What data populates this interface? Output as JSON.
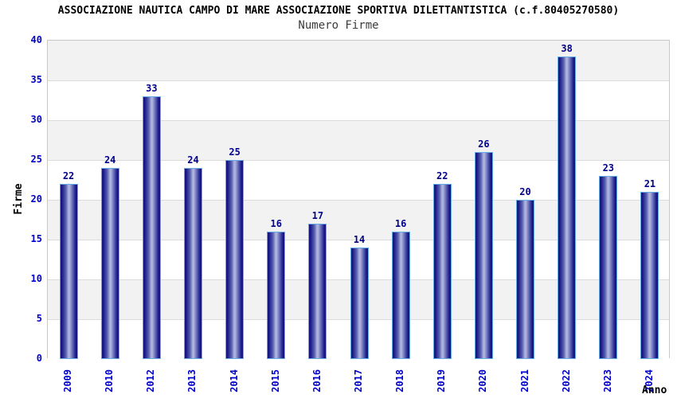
{
  "chart_data": {
    "type": "bar",
    "title": "ASSOCIAZIONE NAUTICA CAMPO DI MARE ASSOCIAZIONE SPORTIVA DILETTANTISTICA (c.f.80405270580)",
    "subtitle": "Numero Firme",
    "xlabel": "Anno",
    "ylabel": "Firme",
    "categories": [
      "2009",
      "2010",
      "2012",
      "2013",
      "2014",
      "2015",
      "2016",
      "2017",
      "2018",
      "2019",
      "2020",
      "2021",
      "2022",
      "2023",
      "2024"
    ],
    "values": [
      22,
      24,
      33,
      24,
      25,
      16,
      17,
      14,
      16,
      22,
      26,
      20,
      38,
      23,
      21
    ],
    "ylim": [
      0,
      40
    ],
    "ytick_step": 5,
    "yticks": [
      0,
      5,
      10,
      15,
      20,
      25,
      30,
      35,
      40
    ],
    "grid": true,
    "legend_position": "none",
    "colors": {
      "bar_dark": "#14147a",
      "bar_light": "#b4b9e0",
      "bar_outline": "#64aae4",
      "value_label": "#00008b",
      "tick_label": "#0000cc",
      "band_gray": "#f2f2f2",
      "gridline": "#dcdcdc",
      "plot_border": "#c8c8c8",
      "title": "#000000",
      "subtitle": "#3c3c3c",
      "background": "#ffffff"
    }
  }
}
